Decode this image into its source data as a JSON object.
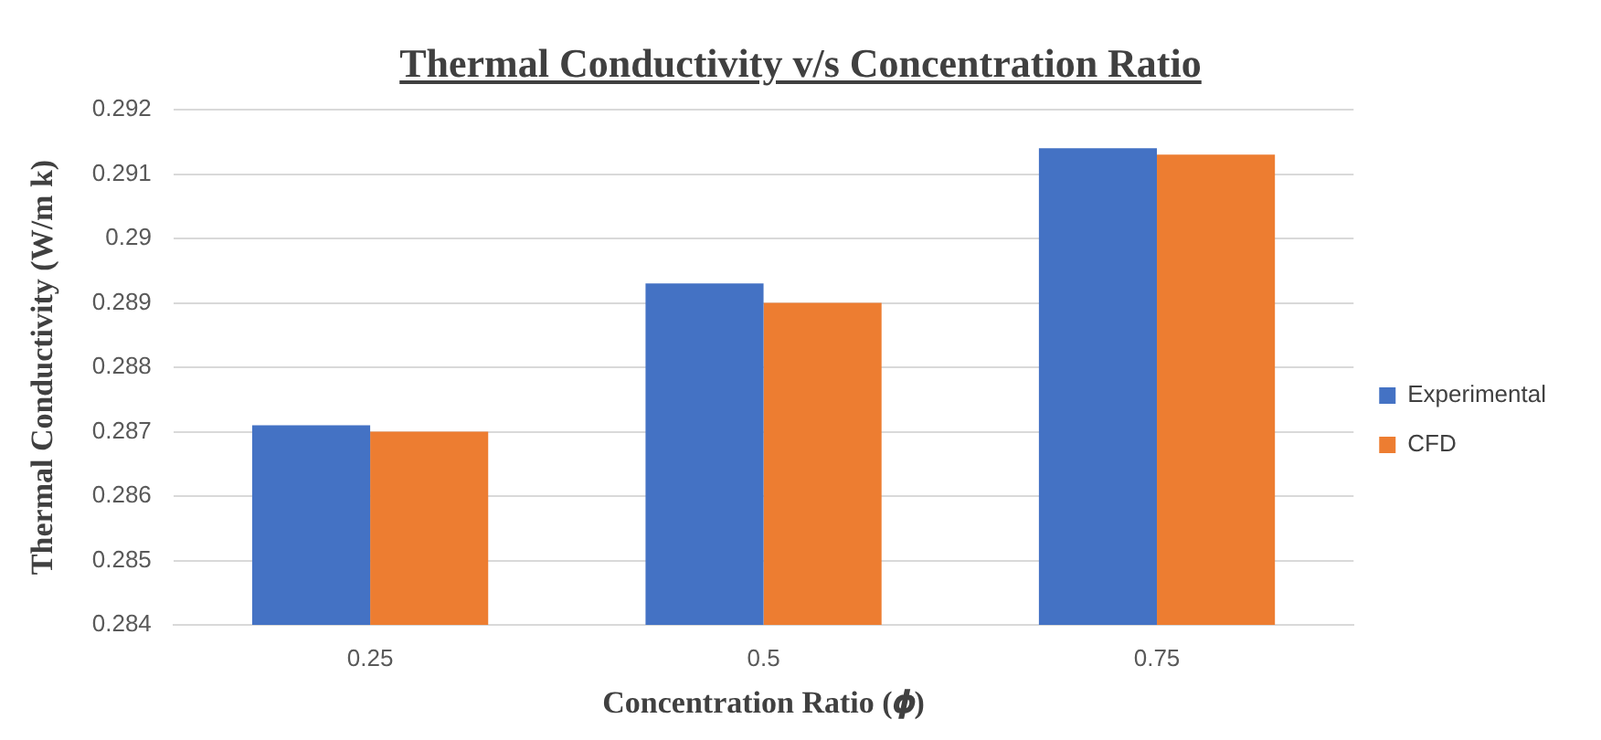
{
  "chart_data": {
    "type": "bar",
    "title": "Thermal Conductivity v/s Concentration Ratio",
    "xlabel": "Concentration Ratio (𝝓)",
    "ylabel": "Thermal Conductivity (W/m k)",
    "categories": [
      "0.25",
      "0.5",
      "0.75"
    ],
    "series": [
      {
        "name": "Experimental",
        "color": "#4472c4",
        "values": [
          0.2871,
          0.2893,
          0.2914
        ]
      },
      {
        "name": "CFD",
        "color": "#ed7d31",
        "values": [
          0.287,
          0.289,
          0.2913
        ]
      }
    ],
    "ylim": [
      0.284,
      0.292
    ],
    "yticks": [
      0.284,
      0.285,
      0.286,
      0.287,
      0.288,
      0.289,
      0.29,
      0.291,
      0.292
    ],
    "grid": "y",
    "legend": "right"
  }
}
